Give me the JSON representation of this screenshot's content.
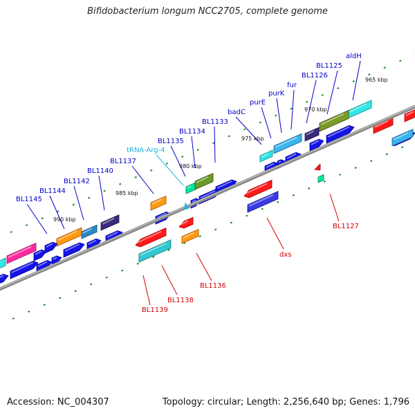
{
  "title": "Bifidobacterium longum NCC2705, complete genome",
  "footer": {
    "accession": "Accession: NC_004307",
    "summary": "Topology: circular; Length: 2,256,640 bp; Genes: 1,796"
  },
  "colors": {
    "backbone": "#7a7a7a",
    "tick": "#1a8a1a",
    "forward_label": "#0000c8",
    "reverse_label": "#d00000",
    "trna_label": "#19b4e6"
  },
  "kbp_labels": [
    "965 kbp",
    "970 kbp",
    "975 kbp",
    "980 kbp",
    "985 kbp",
    "990 kbp"
  ],
  "forward_labels": [
    "aldH",
    "BL1125",
    "BL1126",
    "fur",
    "purK",
    "purE",
    "badC",
    "BL1133",
    "BL1134",
    "BL1135",
    "tRNA-Arg-4",
    "BL1137",
    "BL1140",
    "BL1142",
    "BL1144",
    "BL1145"
  ],
  "reverse_labels": [
    "BL1127",
    "dxs",
    "BL1136",
    "BL1138",
    "BL1139"
  ]
}
